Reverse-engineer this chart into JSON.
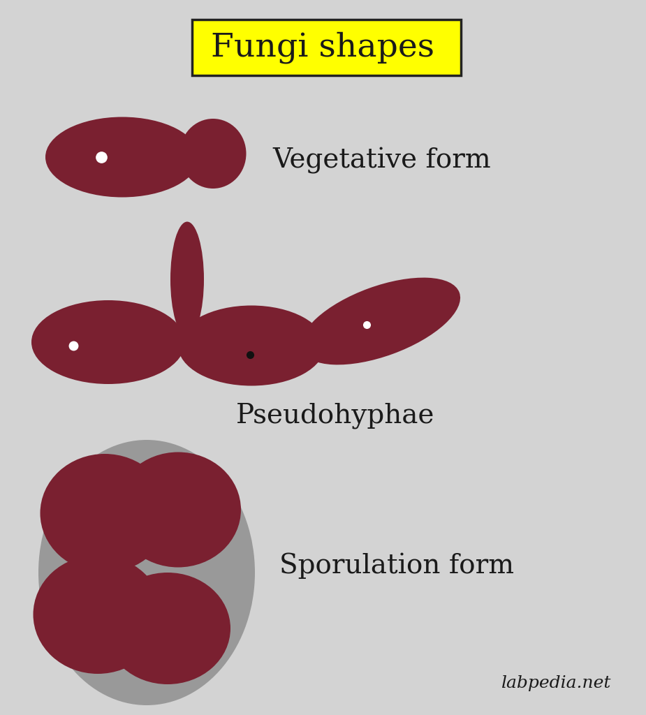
{
  "bg_color": "#d3d3d3",
  "fungi_color": "#7a2030",
  "white_dot": "#ffffff",
  "dark_dot": "#111111",
  "title": "Fungi shapes",
  "title_bg": "#ffff00",
  "title_border": "#222222",
  "label1": "Vegetative form",
  "label2": "Pseudohyphae",
  "label3": "Sporulation form",
  "watermark": "labpedia.net",
  "gray_sac": "#999999",
  "font_color": "#1a1a1a",
  "title_fontsize": 34,
  "label_fontsize": 28,
  "watermark_fontsize": 18
}
